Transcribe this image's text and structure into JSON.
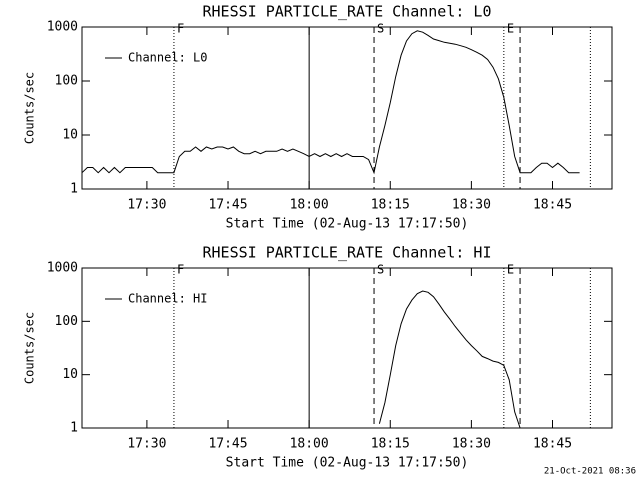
{
  "chart_data": [
    {
      "type": "line",
      "title": "RHESSI PARTICLE_RATE Channel: L0",
      "x_label": "Start Time (02-Aug-13 17:17:50)",
      "y_label": "Counts/sec",
      "ylog": true,
      "xlim": [
        "17:18",
        "18:56"
      ],
      "xticks": [
        "17:30",
        "17:45",
        "18:00",
        "18:15",
        "18:30",
        "18:45"
      ],
      "ylim": [
        1,
        1000
      ],
      "yticks": [
        1,
        10,
        100,
        1000
      ],
      "legend": "upper left",
      "x": [
        "17:18",
        "17:19",
        "17:20",
        "17:21",
        "17:22",
        "17:23",
        "17:24",
        "17:25",
        "17:26",
        "17:27",
        "17:28",
        "17:29",
        "17:30",
        "17:31",
        "17:32",
        "17:33",
        "17:34",
        "17:35",
        "17:36",
        "17:37",
        "17:38",
        "17:39",
        "17:40",
        "17:41",
        "17:42",
        "17:43",
        "17:44",
        "17:45",
        "17:46",
        "17:47",
        "17:48",
        "17:49",
        "17:50",
        "17:51",
        "17:52",
        "17:53",
        "17:54",
        "17:55",
        "17:56",
        "17:57",
        "17:58",
        "17:59",
        "18:00",
        "18:01",
        "18:02",
        "18:03",
        "18:04",
        "18:05",
        "18:06",
        "18:07",
        "18:08",
        "18:09",
        "18:10",
        "18:11",
        "18:12",
        "18:13",
        "18:14",
        "18:15",
        "18:16",
        "18:17",
        "18:18",
        "18:19",
        "18:20",
        "18:21",
        "18:22",
        "18:23",
        "18:24",
        "18:25",
        "18:26",
        "18:27",
        "18:28",
        "18:29",
        "18:30",
        "18:31",
        "18:32",
        "18:33",
        "18:34",
        "18:35",
        "18:36",
        "18:37",
        "18:38",
        "18:39",
        "18:40",
        "18:41",
        "18:42",
        "18:43",
        "18:44",
        "18:45",
        "18:46",
        "18:47",
        "18:48",
        "18:49",
        "18:50"
      ],
      "series": [
        {
          "name": "Channel: L0",
          "color": "#000000",
          "values": [
            2,
            2.5,
            2.5,
            2,
            2.5,
            2,
            2.5,
            2,
            2.5,
            2.5,
            2.5,
            2.5,
            2.5,
            2.5,
            2,
            2,
            2,
            2,
            4,
            5,
            5,
            6,
            5,
            6,
            5.5,
            6,
            6,
            5.5,
            6,
            5,
            4.5,
            4.5,
            5,
            4.5,
            5,
            5,
            5,
            5.5,
            5,
            5.5,
            5,
            4.5,
            4,
            4.5,
            4,
            4.5,
            4,
            4.5,
            4,
            4.5,
            4,
            4,
            4,
            3.5,
            2,
            6,
            15,
            40,
            120,
            300,
            550,
            750,
            850,
            800,
            700,
            600,
            560,
            520,
            500,
            480,
            450,
            420,
            380,
            340,
            300,
            250,
            180,
            110,
            50,
            15,
            4,
            2,
            2,
            2,
            2.5,
            3,
            3,
            2.5,
            3,
            2.5,
            2,
            2,
            2
          ]
        }
      ],
      "annotations": [
        {
          "x": "17:35",
          "label": "F",
          "style": "dotted"
        },
        {
          "x": "18:00",
          "style": "solid"
        },
        {
          "x": "18:12",
          "label": "S",
          "style": "dashed"
        },
        {
          "x": "18:36",
          "label": "E",
          "style": "dotted"
        },
        {
          "x": "18:39",
          "style": "dashed"
        },
        {
          "x": "18:52",
          "style": "dotted"
        }
      ]
    },
    {
      "type": "line",
      "title": "RHESSI PARTICLE_RATE Channel: HI",
      "x_label": "Start Time (02-Aug-13 17:17:50)",
      "y_label": "Counts/sec",
      "ylog": true,
      "xlim": [
        "17:18",
        "18:56"
      ],
      "xticks": [
        "17:30",
        "17:45",
        "18:00",
        "18:15",
        "18:30",
        "18:45"
      ],
      "ylim": [
        1,
        1000
      ],
      "yticks": [
        1,
        10,
        100,
        1000
      ],
      "legend": "upper left",
      "x": [
        "18:13",
        "18:14",
        "18:15",
        "18:16",
        "18:17",
        "18:18",
        "18:19",
        "18:20",
        "18:21",
        "18:22",
        "18:23",
        "18:24",
        "18:25",
        "18:26",
        "18:27",
        "18:28",
        "18:29",
        "18:30",
        "18:31",
        "18:32",
        "18:33",
        "18:34",
        "18:35",
        "18:36",
        "18:37",
        "18:38",
        "18:39"
      ],
      "series": [
        {
          "name": "Channel: HI",
          "color": "#000000",
          "values": [
            1.2,
            3,
            10,
            35,
            90,
            170,
            250,
            330,
            370,
            350,
            290,
            210,
            150,
            110,
            80,
            60,
            45,
            35,
            28,
            22,
            20,
            18,
            17,
            15,
            8,
            2,
            1
          ]
        }
      ],
      "annotations": [
        {
          "x": "17:35",
          "label": "F",
          "style": "dotted"
        },
        {
          "x": "18:00",
          "style": "solid"
        },
        {
          "x": "18:12",
          "label": "S",
          "style": "dashed"
        },
        {
          "x": "18:36",
          "label": "E",
          "style": "dotted"
        },
        {
          "x": "18:39",
          "style": "dashed"
        },
        {
          "x": "18:52",
          "style": "dotted"
        }
      ]
    }
  ],
  "footer": "21-Oct-2021 08:36"
}
